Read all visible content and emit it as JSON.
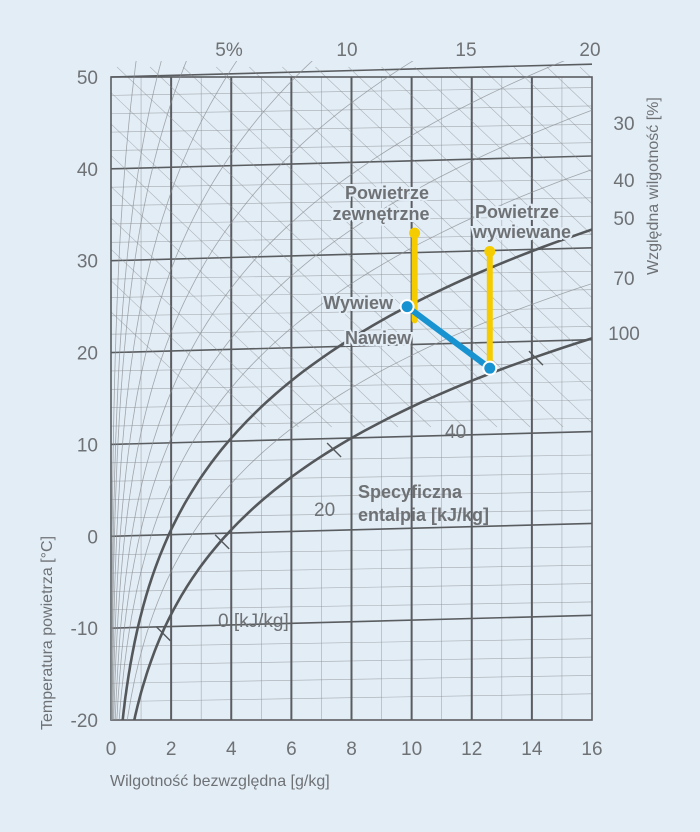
{
  "chart_data": {
    "type": "psychrometric",
    "xlabel": "Wilgotność bezwzględna [g/kg]",
    "ylabel": "Temperatura powietrza [°C]",
    "right_label": "Względna wilgotność [%]",
    "xlim": [
      0,
      16
    ],
    "ylim": [
      -20,
      50
    ],
    "x_ticks": [
      "0",
      "2",
      "4",
      "6",
      "8",
      "10",
      "12",
      "14",
      "16"
    ],
    "y_ticks": [
      "-20",
      "-10",
      "0",
      "10",
      "20",
      "30",
      "40",
      "50"
    ],
    "top_ticks": [
      "5%",
      "10",
      "15",
      "20"
    ],
    "rh_labels": [
      "30",
      "40",
      "50",
      "70",
      "100"
    ],
    "rh_curves_emphasized": [
      50,
      100
    ],
    "enthalpy_labels": [
      "0 [kJ/kg]",
      "20",
      "40"
    ],
    "enthalpy_title_line1": "Specyficzna",
    "enthalpy_title_line2": "entalpia [kJ/kg]",
    "grid": true,
    "colors": {
      "background": "#e3edf6",
      "grid": "#8a8d90",
      "yellow": "#f5cc00",
      "blue": "#1793d1"
    },
    "points": [
      {
        "name": "Powietrze zewnętrzne",
        "label_line1": "Powietrze",
        "label_line2": "zewnętrzne",
        "x": 10.1,
        "y": 33
      },
      {
        "name": "Powietrze wywiewane",
        "label_line1": "Powietrze",
        "label_line2": "wywiewane",
        "x": 12.6,
        "y": 31
      },
      {
        "name": "Wywiew",
        "label": "Wywiew",
        "x": 9.85,
        "y": 25
      },
      {
        "name": "Nawiew",
        "label": "Nawiew",
        "x": 12.6,
        "y": 18.3
      }
    ],
    "segments": [
      {
        "from": "Powietrze zewnętrzne",
        "x": [
          10.1,
          10.1
        ],
        "y": [
          33,
          23.5
        ],
        "color": "yellow"
      },
      {
        "from": "Powietrze wywiewane",
        "x": [
          12.6,
          12.6
        ],
        "y": [
          31,
          18.3
        ],
        "color": "yellow"
      },
      {
        "from": "Wywiew",
        "to": "Nawiew",
        "x": [
          9.85,
          12.6
        ],
        "y": [
          25,
          18.3
        ],
        "color": "blue"
      }
    ]
  }
}
